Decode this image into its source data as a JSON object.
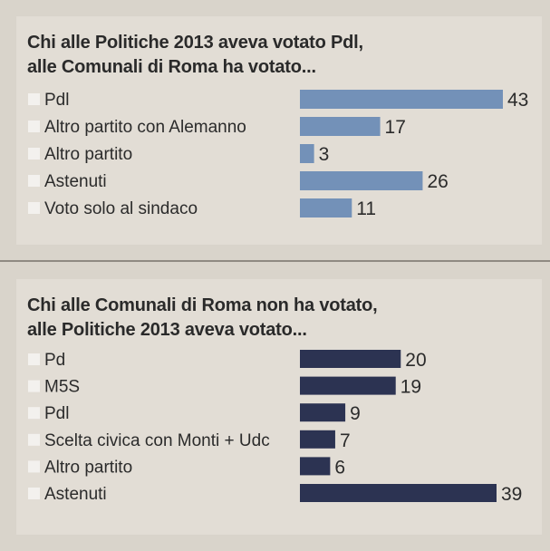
{
  "colors": {
    "background": "#d9d4cb",
    "panel": "#e2ddd5",
    "bar_light": "#7391b8",
    "bar_dark": "#2c3352",
    "bullet": "#f3f1ee"
  },
  "chart_data": [
    {
      "type": "bar",
      "orientation": "horizontal",
      "title_lines": [
        "Chi alle Politiche 2013 aveva votato Pdl,",
        "alle Comunali di Roma ha votato..."
      ],
      "categories": [
        "Pdl",
        "Altro partito con Alemanno",
        "Altro partito",
        "Astenuti",
        "Voto solo al sindaco"
      ],
      "values": [
        43,
        17,
        3,
        26,
        11
      ],
      "color": "#7391b8",
      "xlim": [
        0,
        43
      ],
      "data_labels": true,
      "grid": false
    },
    {
      "type": "bar",
      "orientation": "horizontal",
      "title_lines": [
        "Chi alle Comunali di Roma non ha votato,",
        "alle Politiche 2013 aveva votato..."
      ],
      "categories": [
        "Pd",
        "M5S",
        "Pdl",
        "Scelta civica con Monti + Udc",
        "Altro partito",
        "Astenuti"
      ],
      "values": [
        20,
        19,
        9,
        7,
        6,
        39
      ],
      "color": "#2c3352",
      "xlim": [
        0,
        39
      ],
      "data_labels": true,
      "grid": false
    }
  ]
}
